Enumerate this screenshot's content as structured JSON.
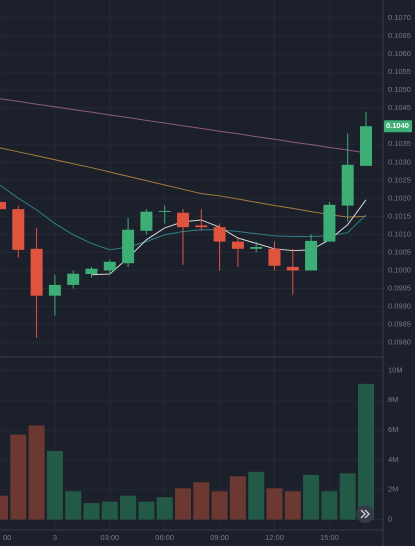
{
  "chart_data": {
    "type": "candlestick",
    "categories": [
      "00",
      null,
      null,
      "3",
      null,
      null,
      "03:00",
      null,
      null,
      "06:00",
      null,
      null,
      "09:00",
      null,
      null,
      "12:00",
      null,
      null,
      "15:00",
      null,
      null
    ],
    "open": [
      0.1019,
      0.1017,
      0.1006,
      0.0993,
      0.0996,
      0.0999,
      0.1,
      0.1002,
      0.1011,
      0.10163,
      0.1016,
      0.10125,
      0.1012,
      0.1008,
      0.1006,
      0.1006,
      0.1001,
      0.1,
      0.1008,
      0.1018,
      0.1029
    ],
    "high": [
      0.1019,
      0.1018,
      0.10118,
      0.09988,
      0.1,
      0.1001,
      0.1003,
      0.10146,
      0.1017,
      0.1018,
      0.1017,
      0.1017,
      0.1013,
      0.1009,
      0.1008,
      0.1008,
      0.1006,
      0.101,
      0.1019,
      0.1038,
      0.1044
    ],
    "low": [
      0.1017,
      0.10035,
      0.09813,
      0.09875,
      0.0995,
      0.0998,
      0.0999,
      0.1001,
      0.101,
      0.1013,
      0.10016,
      0.1011,
      0.1,
      0.1001,
      0.1005,
      0.1,
      0.09933,
      0.1,
      0.1008,
      0.10135,
      0.1029
    ],
    "close": [
      0.1017,
      0.10057,
      0.0993,
      0.0996,
      0.09991,
      0.10005,
      0.10024,
      0.10113,
      0.10163,
      0.10165,
      0.1012,
      0.1012,
      0.1008,
      0.1006,
      0.10065,
      0.10013,
      0.1,
      0.10082,
      0.10182,
      0.10293,
      0.104
    ],
    "last_value_label": "0.1040",
    "up_color": "#3dae76",
    "down_color": "#e0533f",
    "lines": [
      {
        "color": "#8e5a86",
        "values": [
          0.10476,
          0.10469,
          0.10461,
          0.10454,
          0.10446,
          0.10439,
          0.10431,
          0.10424,
          0.10416,
          0.10409,
          0.10401,
          0.10394,
          0.10386,
          0.10379,
          0.10371,
          0.10364,
          0.10356,
          0.10349,
          0.10341,
          0.10334,
          0.10326
        ]
      },
      {
        "color": "#a7783c",
        "values": [
          0.1034,
          0.10329,
          0.10318,
          0.10307,
          0.10296,
          0.10285,
          0.10273,
          0.10261,
          0.10249,
          0.10237,
          0.10225,
          0.10213,
          0.10207,
          0.10198,
          0.10189,
          0.1018,
          0.10172,
          0.10163,
          0.10155,
          0.10148,
          0.1015
        ]
      },
      {
        "color": "#2f7f86",
        "values": [
          0.10237,
          0.102,
          0.10168,
          0.1013,
          0.10099,
          0.10075,
          0.10057,
          0.10065,
          0.1008,
          0.10099,
          0.10108,
          0.10113,
          0.10113,
          0.10108,
          0.10102,
          0.10096,
          0.10094,
          0.10094,
          0.10096,
          0.10105,
          0.10154
        ]
      },
      {
        "color": "#d8d8d8",
        "values": [
          null,
          null,
          null,
          null,
          null,
          0.09988,
          0.0999,
          0.10035,
          0.10085,
          0.10118,
          0.10135,
          0.1014,
          0.1012,
          0.1009,
          0.10075,
          0.1006,
          0.10055,
          0.10057,
          0.10085,
          0.10127,
          0.10196
        ]
      }
    ],
    "ylim": [
      0.0976,
      0.1075
    ],
    "yticks": [
      {
        "value": 0.098,
        "label": "0.0980"
      },
      {
        "value": 0.0985,
        "label": "0.0985"
      },
      {
        "value": 0.099,
        "label": "0.0990"
      },
      {
        "value": 0.0995,
        "label": "0.0995"
      },
      {
        "value": 0.1,
        "label": "0.1000"
      },
      {
        "value": 0.1005,
        "label": "0.1005"
      },
      {
        "value": 0.101,
        "label": "0.1010"
      },
      {
        "value": 0.1015,
        "label": "0.1015"
      },
      {
        "value": 0.102,
        "label": "0.1020"
      },
      {
        "value": 0.1025,
        "label": "0.1025"
      },
      {
        "value": 0.103,
        "label": "0.1030"
      },
      {
        "value": 0.1035,
        "label": "0.1035"
      },
      {
        "value": 0.1045,
        "label": "0.1045"
      },
      {
        "value": 0.105,
        "label": "0.1050"
      },
      {
        "value": 0.1055,
        "label": "0.1055"
      },
      {
        "value": 0.106,
        "label": "0.1060"
      },
      {
        "value": 0.1065,
        "label": "0.1065"
      },
      {
        "value": 0.107,
        "label": "0.1070"
      }
    ],
    "volume": {
      "values": [
        1.6,
        5.7,
        6.3,
        4.6,
        1.9,
        1.1,
        1.2,
        1.6,
        1.2,
        1.5,
        2.1,
        2.5,
        1.9,
        2.9,
        3.2,
        2.1,
        1.9,
        3.0,
        1.9,
        3.1,
        9.1
      ],
      "up_color": "#235a47",
      "down_color": "#6b3832",
      "ylim": [
        -0.7,
        10.9
      ],
      "yticks": [
        0,
        {
          "value": 2,
          "label": "2M"
        },
        {
          "value": 4,
          "label": "4M"
        },
        {
          "value": 6,
          "label": "6M"
        },
        {
          "value": 8,
          "label": "8M"
        },
        {
          "value": 10,
          "label": "10M"
        }
      ]
    },
    "grid": true
  }
}
